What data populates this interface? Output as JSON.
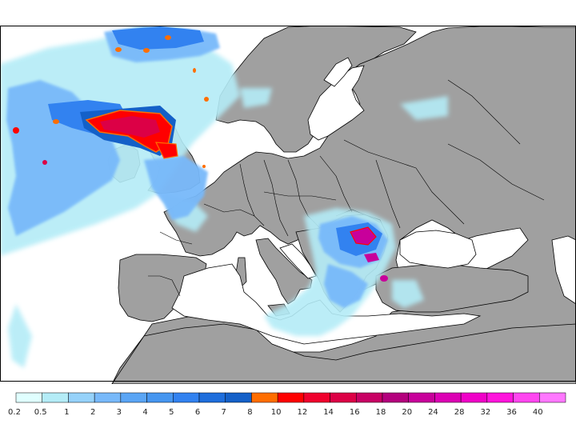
{
  "map": {
    "projection_frame": "Europe",
    "background_sea": "#ffffff",
    "land_color": "#a0a0a0",
    "border_color": "#000000"
  },
  "legend": {
    "bins": [
      {
        "label": "0.2",
        "color": "#e0ffff"
      },
      {
        "label": "0.5",
        "color": "#b4ecf7"
      },
      {
        "label": "1",
        "color": "#96d2fa"
      },
      {
        "label": "2",
        "color": "#78b9fa"
      },
      {
        "label": "3",
        "color": "#5aa5f5"
      },
      {
        "label": "4",
        "color": "#4696f0"
      },
      {
        "label": "5",
        "color": "#3282f0"
      },
      {
        "label": "6",
        "color": "#1e6edc"
      },
      {
        "label": "7",
        "color": "#1460c8"
      },
      {
        "label": "8",
        "color": "#ff6e00"
      },
      {
        "label": "10",
        "color": "#ff0000"
      },
      {
        "label": "12",
        "color": "#f0002d"
      },
      {
        "label": "14",
        "color": "#dc0046"
      },
      {
        "label": "16",
        "color": "#c80064"
      },
      {
        "label": "18",
        "color": "#b4007d"
      },
      {
        "label": "20",
        "color": "#c8009b"
      },
      {
        "label": "24",
        "color": "#dc00b4"
      },
      {
        "label": "28",
        "color": "#f000c8"
      },
      {
        "label": "32",
        "color": "#ff14dc"
      },
      {
        "label": "36",
        "color": "#ff46f0"
      },
      {
        "label": "40",
        "color": "#ff78ff"
      }
    ]
  }
}
